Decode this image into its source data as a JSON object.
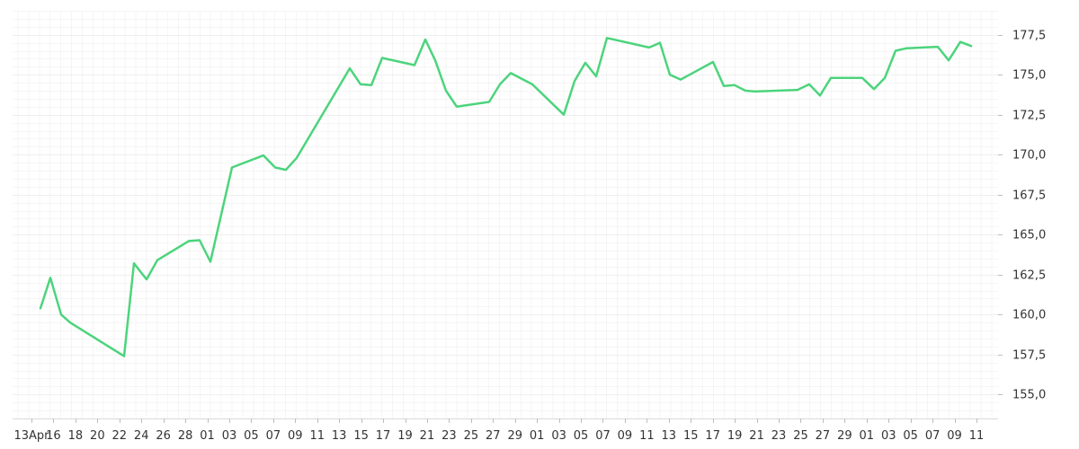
{
  "chart_data": {
    "type": "line",
    "title": "",
    "xlabel": "",
    "ylabel": "",
    "ylim": [
      153.5,
      179.0
    ],
    "y_ticks": [
      "155,0",
      "157,5",
      "160,0",
      "162,5",
      "165,0",
      "167,5",
      "170,0",
      "172,5",
      "175,0",
      "177,5"
    ],
    "x_tick_labels": [
      "13Apr",
      "16",
      "18",
      "20",
      "22",
      "24",
      "26",
      "28",
      "01",
      "03",
      "05",
      "07",
      "09",
      "11",
      "13",
      "15",
      "17",
      "19",
      "21",
      "23",
      "25",
      "27",
      "29",
      "01",
      "03",
      "05",
      "07",
      "09",
      "11",
      "13",
      "15",
      "17",
      "19",
      "21",
      "23",
      "25",
      "27",
      "29",
      "01",
      "03",
      "05",
      "07",
      "09",
      "11"
    ],
    "grid": true,
    "y_axis_position": "right",
    "series": [
      {
        "color": "#4cd47c",
        "x": [
          45,
          56,
          68,
          78,
          138,
          149,
          163,
          175,
          210,
          222,
          234,
          258,
          293,
          306,
          318,
          330,
          389,
          401,
          413,
          425,
          461,
          473,
          484,
          496,
          508,
          544,
          556,
          568,
          592,
          627,
          639,
          651,
          663,
          675,
          722,
          734,
          745,
          757,
          793,
          805,
          817,
          829,
          840,
          887,
          900,
          912,
          924,
          959,
          972,
          984,
          996,
          1008,
          1043,
          1055,
          1068,
          1080
        ],
        "y": [
          160.4,
          162.3,
          160.0,
          159.5,
          157.4,
          163.2,
          162.2,
          163.4,
          164.6,
          164.65,
          163.3,
          169.2,
          169.95,
          169.2,
          169.05,
          169.8,
          175.4,
          174.4,
          174.35,
          176.05,
          175.6,
          177.2,
          175.9,
          174.0,
          173.0,
          173.3,
          174.4,
          175.1,
          174.4,
          172.5,
          174.6,
          175.75,
          174.9,
          177.3,
          176.7,
          177.0,
          175.0,
          174.7,
          175.8,
          174.3,
          174.35,
          174.0,
          173.95,
          174.05,
          174.4,
          173.7,
          174.8,
          174.8,
          174.1,
          174.8,
          176.5,
          176.65,
          176.75,
          175.9,
          177.05,
          176.8
        ]
      }
    ]
  }
}
